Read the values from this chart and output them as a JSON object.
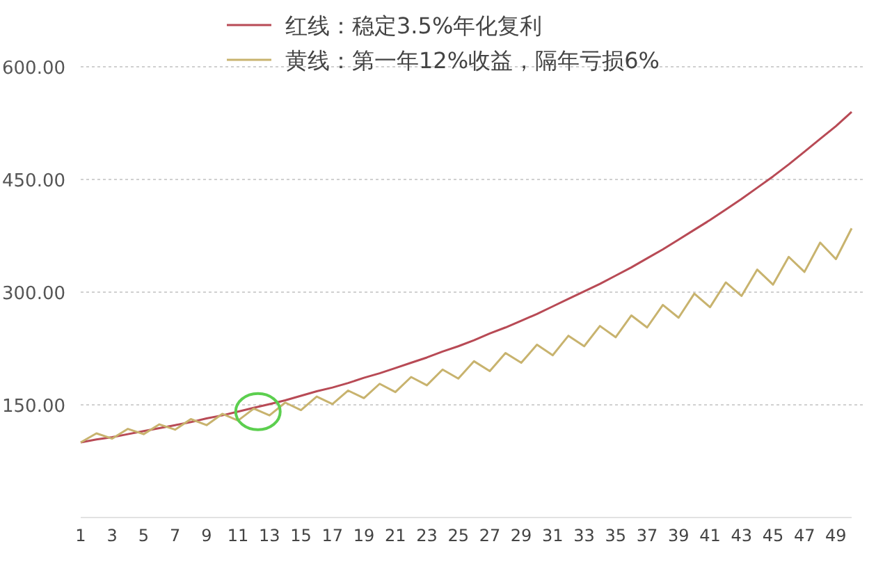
{
  "chart_data": {
    "type": "line",
    "x": [
      1,
      2,
      3,
      4,
      5,
      6,
      7,
      8,
      9,
      10,
      11,
      12,
      13,
      14,
      15,
      16,
      17,
      18,
      19,
      20,
      21,
      22,
      23,
      24,
      25,
      26,
      27,
      28,
      29,
      30,
      31,
      32,
      33,
      34,
      35,
      36,
      37,
      38,
      39,
      40,
      41,
      42,
      43,
      44,
      45,
      46,
      47,
      48,
      49,
      50
    ],
    "series": [
      {
        "name": "红线：稳定3.5%年化复利",
        "color": "#b84a55",
        "values": [
          100,
          104,
          107,
          111,
          115,
          119,
          123,
          127,
          132,
          136,
          141,
          146,
          151,
          156,
          162,
          168,
          173,
          179,
          186,
          192,
          199,
          206,
          213,
          221,
          228,
          236,
          245,
          253,
          262,
          271,
          281,
          291,
          301,
          311,
          322,
          333,
          345,
          357,
          370,
          383,
          396,
          410,
          424,
          439,
          454,
          470,
          487,
          504,
          521,
          540
        ]
      },
      {
        "name": "黄线：第一年12%收益，隔年亏损6%",
        "color": "#c8b36e",
        "values": [
          100,
          112,
          105,
          118,
          111,
          124,
          117,
          131,
          123,
          138,
          129,
          145,
          136,
          153,
          143,
          161,
          151,
          169,
          159,
          178,
          167,
          187,
          176,
          197,
          185,
          208,
          195,
          219,
          206,
          230,
          216,
          242,
          228,
          255,
          240,
          269,
          253,
          283,
          266,
          298,
          280,
          313,
          295,
          330,
          310,
          347,
          327,
          366,
          344,
          385
        ]
      }
    ],
    "xlim": [
      1,
      50
    ],
    "xticks": [
      1,
      3,
      5,
      7,
      9,
      11,
      13,
      15,
      17,
      19,
      21,
      23,
      25,
      27,
      29,
      31,
      33,
      35,
      37,
      39,
      41,
      43,
      45,
      47,
      49
    ],
    "ylim": [
      0,
      600
    ],
    "yticks": [
      {
        "value": 150,
        "label": "150.00"
      },
      {
        "value": 300,
        "label": "300.00"
      },
      {
        "value": 450,
        "label": "450.00"
      },
      {
        "value": 600,
        "label": "600.00"
      }
    ],
    "grid": "y",
    "legend": "top",
    "marker": "none",
    "line_style": "solid"
  }
}
